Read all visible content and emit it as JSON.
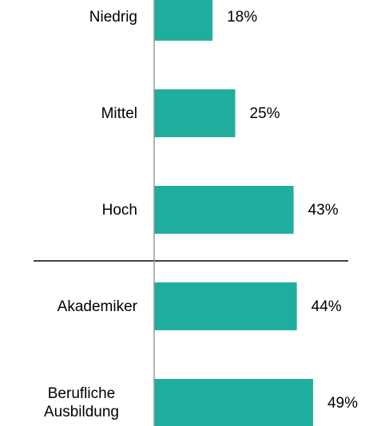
{
  "chart_data": {
    "type": "bar",
    "orientation": "horizontal",
    "categories": [
      "Niedrig",
      "Mittel",
      "Hoch",
      "Akademiker",
      "Berufliche Ausbildung"
    ],
    "values": [
      18,
      25,
      43,
      44,
      49
    ],
    "value_labels": [
      "18%",
      "25%",
      "43%",
      "44%",
      "49%"
    ],
    "color": "#1fae9e"
  }
}
